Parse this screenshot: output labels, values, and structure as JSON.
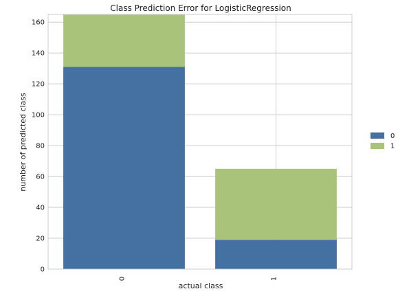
{
  "chart_data": {
    "type": "bar",
    "stacked": true,
    "title": "Class Prediction Error for LogisticRegression",
    "xlabel": "actual class",
    "ylabel": "number of predicted class",
    "categories": [
      "0",
      "1"
    ],
    "series": [
      {
        "name": "0",
        "values": [
          131,
          19
        ],
        "color": "#4471a2"
      },
      {
        "name": "1",
        "values": [
          34,
          46
        ],
        "color": "#a9c47a"
      }
    ],
    "ylim": [
      0,
      165
    ],
    "yticks": [
      0,
      20,
      40,
      60,
      80,
      100,
      120,
      140,
      160
    ],
    "grid": true,
    "legend": "right"
  }
}
